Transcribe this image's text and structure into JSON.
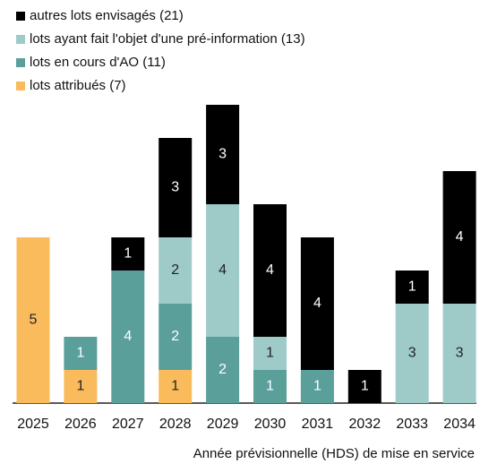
{
  "chart_data": {
    "type": "stacked_bar",
    "xlabel": "Année prévisionnelle (HDS) de mise en service",
    "categories": [
      "2025",
      "2026",
      "2027",
      "2028",
      "2029",
      "2030",
      "2031",
      "2032",
      "2033",
      "2034"
    ],
    "series": [
      {
        "name": "autres lots envisagés (21)",
        "color": "#000000",
        "values": [
          0,
          0,
          1,
          3,
          3,
          4,
          4,
          1,
          1,
          4
        ]
      },
      {
        "name": "lots ayant fait l'objet d'une pré-information (13)",
        "color": "#9ecbc8",
        "values": [
          0,
          0,
          0,
          2,
          4,
          1,
          0,
          0,
          3,
          3
        ]
      },
      {
        "name": "lots en cours d'AO (11)",
        "color": "#5b9f9b",
        "values": [
          0,
          1,
          4,
          2,
          2,
          1,
          1,
          0,
          0,
          0
        ]
      },
      {
        "name": "lots attribués (7)",
        "color": "#f9bb5c",
        "values": [
          5,
          1,
          0,
          1,
          0,
          0,
          0,
          0,
          0,
          0
        ]
      }
    ],
    "legend": "top-left"
  }
}
